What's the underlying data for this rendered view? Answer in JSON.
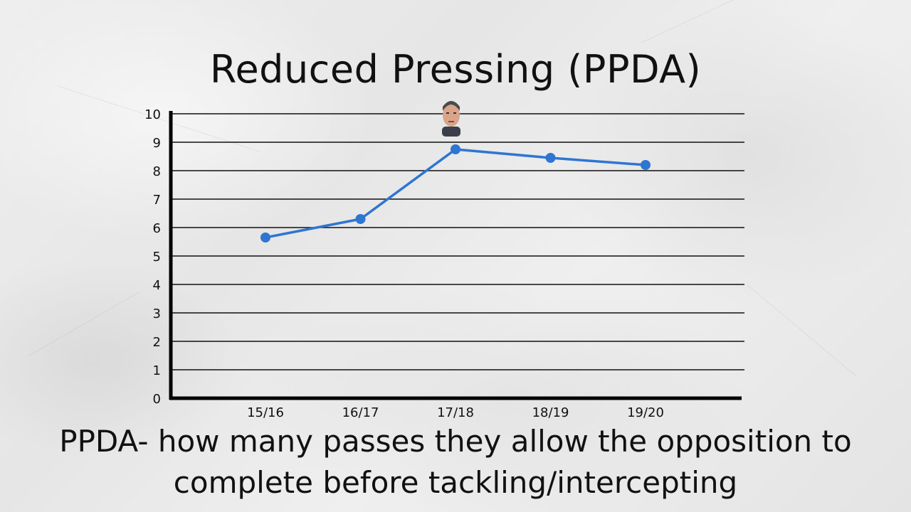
{
  "title": "Reduced Pressing (PPDA)",
  "caption": {
    "line1": "PPDA- how many passes they allow the opposition to",
    "line2": "complete before tackling/intercepting"
  },
  "colors": {
    "line": "#2f76d0",
    "grid": "#111111",
    "background": "#e9e9e9"
  },
  "icons": {
    "marker_icon": "manager-portrait-icon"
  },
  "chart_data": {
    "type": "line",
    "title": "Reduced Pressing (PPDA)",
    "xlabel": "",
    "ylabel": "",
    "categories": [
      "15/16",
      "16/17",
      "17/18",
      "18/19",
      "19/20"
    ],
    "values": [
      5.65,
      6.3,
      8.75,
      8.45,
      8.2
    ],
    "ylim": [
      0,
      10
    ],
    "yticks": [
      0,
      1,
      2,
      3,
      4,
      5,
      6,
      7,
      8,
      9,
      10
    ],
    "grid": true,
    "annotation": {
      "category": "17/18",
      "icon": "manager-portrait-icon"
    }
  }
}
